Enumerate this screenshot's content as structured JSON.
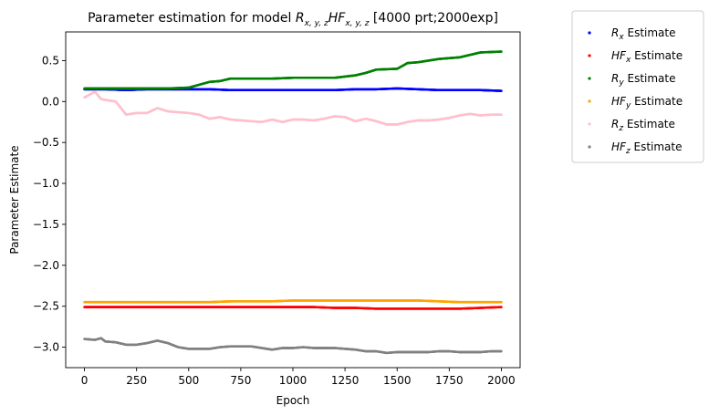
{
  "chart_data": {
    "type": "scatter",
    "title": "Parameter estimation for model R_{x,y,z}HF_{x,y,z} [4000 prt;2000exp]",
    "title_parts": {
      "prefix": "Parameter estimation for model ",
      "r": "R",
      "r_sub": "x, y, z",
      "hf": "HF",
      "hf_sub": "x, y, z",
      "suffix": " [4000 prt;2000exp]"
    },
    "xlabel": "Epoch",
    "ylabel": "Parameter Estimate",
    "xlim": [
      -90,
      2090
    ],
    "ylim": [
      -3.25,
      0.85
    ],
    "x_ticks": [
      0,
      250,
      500,
      750,
      1000,
      1250,
      1500,
      1750,
      2000
    ],
    "y_ticks": [
      0.5,
      0.0,
      -0.5,
      -1.0,
      -1.5,
      -2.0,
      -2.5,
      -3.0
    ],
    "y_tick_labels": [
      "0.5",
      "0.0",
      "−0.5",
      "−1.0",
      "−1.5",
      "−2.0",
      "−2.5",
      "−3.0"
    ],
    "legend_position": "outside-right",
    "series": [
      {
        "name": "R_x Estimate",
        "label_main": "R",
        "label_sub": "x",
        "label_rest": " Estimate",
        "color": "#0000ff",
        "points": [
          [
            0,
            0.15
          ],
          [
            100,
            0.15
          ],
          [
            200,
            0.14
          ],
          [
            300,
            0.15
          ],
          [
            400,
            0.15
          ],
          [
            500,
            0.15
          ],
          [
            600,
            0.15
          ],
          [
            700,
            0.14
          ],
          [
            800,
            0.14
          ],
          [
            900,
            0.14
          ],
          [
            1000,
            0.14
          ],
          [
            1100,
            0.14
          ],
          [
            1200,
            0.14
          ],
          [
            1300,
            0.15
          ],
          [
            1400,
            0.15
          ],
          [
            1500,
            0.16
          ],
          [
            1600,
            0.15
          ],
          [
            1700,
            0.14
          ],
          [
            1800,
            0.14
          ],
          [
            1900,
            0.14
          ],
          [
            2000,
            0.13
          ]
        ]
      },
      {
        "name": "HF_x Estimate",
        "label_main": "HF",
        "label_sub": "x",
        "label_rest": " Estimate",
        "color": "#ff0000",
        "points": [
          [
            0,
            -2.51
          ],
          [
            100,
            -2.51
          ],
          [
            200,
            -2.51
          ],
          [
            300,
            -2.51
          ],
          [
            400,
            -2.51
          ],
          [
            500,
            -2.51
          ],
          [
            600,
            -2.51
          ],
          [
            700,
            -2.51
          ],
          [
            800,
            -2.51
          ],
          [
            900,
            -2.51
          ],
          [
            1000,
            -2.51
          ],
          [
            1100,
            -2.51
          ],
          [
            1200,
            -2.52
          ],
          [
            1300,
            -2.52
          ],
          [
            1400,
            -2.53
          ],
          [
            1500,
            -2.53
          ],
          [
            1600,
            -2.53
          ],
          [
            1700,
            -2.53
          ],
          [
            1800,
            -2.53
          ],
          [
            1900,
            -2.52
          ],
          [
            2000,
            -2.51
          ]
        ]
      },
      {
        "name": "R_y Estimate",
        "label_main": "R",
        "label_sub": "y",
        "label_rest": " Estimate",
        "color": "#008000",
        "points": [
          [
            0,
            0.16
          ],
          [
            100,
            0.16
          ],
          [
            200,
            0.16
          ],
          [
            300,
            0.16
          ],
          [
            400,
            0.16
          ],
          [
            500,
            0.17
          ],
          [
            600,
            0.24
          ],
          [
            650,
            0.25
          ],
          [
            700,
            0.28
          ],
          [
            800,
            0.28
          ],
          [
            900,
            0.28
          ],
          [
            1000,
            0.29
          ],
          [
            1100,
            0.29
          ],
          [
            1200,
            0.29
          ],
          [
            1300,
            0.32
          ],
          [
            1350,
            0.35
          ],
          [
            1400,
            0.39
          ],
          [
            1500,
            0.4
          ],
          [
            1550,
            0.47
          ],
          [
            1600,
            0.48
          ],
          [
            1700,
            0.52
          ],
          [
            1800,
            0.54
          ],
          [
            1850,
            0.57
          ],
          [
            1900,
            0.6
          ],
          [
            2000,
            0.61
          ]
        ]
      },
      {
        "name": "HF_y Estimate",
        "label_main": "HF",
        "label_sub": "y",
        "label_rest": " Estimate",
        "color": "#ffa500",
        "points": [
          [
            0,
            -2.45
          ],
          [
            100,
            -2.45
          ],
          [
            200,
            -2.45
          ],
          [
            300,
            -2.45
          ],
          [
            400,
            -2.45
          ],
          [
            500,
            -2.45
          ],
          [
            600,
            -2.45
          ],
          [
            700,
            -2.44
          ],
          [
            800,
            -2.44
          ],
          [
            900,
            -2.44
          ],
          [
            1000,
            -2.43
          ],
          [
            1100,
            -2.43
          ],
          [
            1200,
            -2.43
          ],
          [
            1300,
            -2.43
          ],
          [
            1400,
            -2.43
          ],
          [
            1500,
            -2.43
          ],
          [
            1600,
            -2.43
          ],
          [
            1700,
            -2.44
          ],
          [
            1800,
            -2.45
          ],
          [
            1900,
            -2.45
          ],
          [
            2000,
            -2.45
          ]
        ]
      },
      {
        "name": "R_z Estimate",
        "label_main": "R",
        "label_sub": "z",
        "label_rest": " Estimate",
        "color": "#ffc0cb",
        "points": [
          [
            0,
            0.05
          ],
          [
            50,
            0.12
          ],
          [
            80,
            0.03
          ],
          [
            100,
            0.02
          ],
          [
            150,
            0.0
          ],
          [
            200,
            -0.16
          ],
          [
            250,
            -0.14
          ],
          [
            300,
            -0.14
          ],
          [
            350,
            -0.08
          ],
          [
            400,
            -0.12
          ],
          [
            450,
            -0.13
          ],
          [
            500,
            -0.14
          ],
          [
            550,
            -0.16
          ],
          [
            600,
            -0.21
          ],
          [
            650,
            -0.19
          ],
          [
            700,
            -0.22
          ],
          [
            750,
            -0.23
          ],
          [
            800,
            -0.24
          ],
          [
            850,
            -0.25
          ],
          [
            900,
            -0.22
          ],
          [
            950,
            -0.25
          ],
          [
            1000,
            -0.22
          ],
          [
            1050,
            -0.22
          ],
          [
            1100,
            -0.23
          ],
          [
            1150,
            -0.21
          ],
          [
            1200,
            -0.18
          ],
          [
            1250,
            -0.19
          ],
          [
            1300,
            -0.24
          ],
          [
            1350,
            -0.21
          ],
          [
            1400,
            -0.24
          ],
          [
            1450,
            -0.28
          ],
          [
            1500,
            -0.28
          ],
          [
            1550,
            -0.25
          ],
          [
            1600,
            -0.23
          ],
          [
            1650,
            -0.23
          ],
          [
            1700,
            -0.22
          ],
          [
            1750,
            -0.2
          ],
          [
            1800,
            -0.17
          ],
          [
            1850,
            -0.15
          ],
          [
            1900,
            -0.17
          ],
          [
            1950,
            -0.16
          ],
          [
            2000,
            -0.16
          ]
        ]
      },
      {
        "name": "HF_z Estimate",
        "label_main": "HF",
        "label_sub": "z",
        "label_rest": " Estimate",
        "color": "#808080",
        "points": [
          [
            0,
            -2.9
          ],
          [
            50,
            -2.91
          ],
          [
            80,
            -2.89
          ],
          [
            100,
            -2.93
          ],
          [
            150,
            -2.94
          ],
          [
            200,
            -2.97
          ],
          [
            250,
            -2.97
          ],
          [
            300,
            -2.95
          ],
          [
            350,
            -2.92
          ],
          [
            400,
            -2.95
          ],
          [
            450,
            -3.0
          ],
          [
            500,
            -3.02
          ],
          [
            550,
            -3.02
          ],
          [
            600,
            -3.02
          ],
          [
            650,
            -3.0
          ],
          [
            700,
            -2.99
          ],
          [
            750,
            -2.99
          ],
          [
            800,
            -2.99
          ],
          [
            850,
            -3.01
          ],
          [
            900,
            -3.03
          ],
          [
            950,
            -3.01
          ],
          [
            1000,
            -3.01
          ],
          [
            1050,
            -3.0
          ],
          [
            1100,
            -3.01
          ],
          [
            1150,
            -3.01
          ],
          [
            1200,
            -3.01
          ],
          [
            1250,
            -3.02
          ],
          [
            1300,
            -3.03
          ],
          [
            1350,
            -3.05
          ],
          [
            1400,
            -3.05
          ],
          [
            1450,
            -3.07
          ],
          [
            1500,
            -3.06
          ],
          [
            1550,
            -3.06
          ],
          [
            1600,
            -3.06
          ],
          [
            1650,
            -3.06
          ],
          [
            1700,
            -3.05
          ],
          [
            1750,
            -3.05
          ],
          [
            1800,
            -3.06
          ],
          [
            1850,
            -3.06
          ],
          [
            1900,
            -3.06
          ],
          [
            1950,
            -3.05
          ],
          [
            2000,
            -3.05
          ]
        ]
      }
    ]
  }
}
